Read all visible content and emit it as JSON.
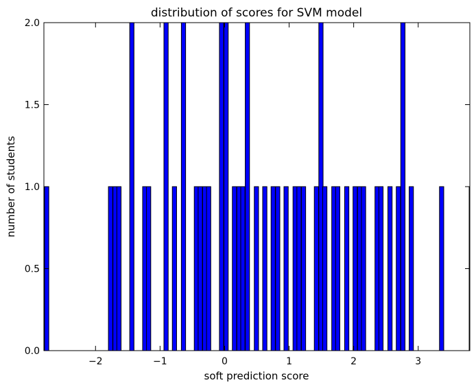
{
  "chart_data": {
    "type": "bar",
    "title": "distribution of scores for SVM model",
    "xlabel": "soft prediction score",
    "ylabel": "number of students",
    "xlim": [
      -2.8,
      3.8
    ],
    "ylim": [
      0,
      2.0
    ],
    "xticks": [
      -2,
      -1,
      0,
      1,
      2,
      3
    ],
    "xtick_labels": [
      "−2",
      "−1",
      "0",
      "1",
      "2",
      "3"
    ],
    "yticks": [
      0.0,
      0.5,
      1.0,
      1.5,
      2.0
    ],
    "ytick_labels": [
      "0.0",
      "0.5",
      "1.0",
      "1.5",
      "2.0"
    ],
    "grid": false,
    "bar_color": "#0000ff",
    "edge_color": "#000000",
    "bin_width": 0.066,
    "bins": [
      {
        "x": -2.79,
        "count": 1
      },
      {
        "x": -1.8,
        "count": 1
      },
      {
        "x": -1.73,
        "count": 1
      },
      {
        "x": -1.67,
        "count": 1
      },
      {
        "x": -1.47,
        "count": 2
      },
      {
        "x": -1.27,
        "count": 1
      },
      {
        "x": -1.21,
        "count": 1
      },
      {
        "x": -0.94,
        "count": 2
      },
      {
        "x": -0.81,
        "count": 1
      },
      {
        "x": -0.67,
        "count": 2
      },
      {
        "x": -0.47,
        "count": 1
      },
      {
        "x": -0.41,
        "count": 1
      },
      {
        "x": -0.34,
        "count": 1
      },
      {
        "x": -0.28,
        "count": 1
      },
      {
        "x": -0.08,
        "count": 2
      },
      {
        "x": -0.01,
        "count": 2
      },
      {
        "x": 0.12,
        "count": 1
      },
      {
        "x": 0.19,
        "count": 1
      },
      {
        "x": 0.25,
        "count": 1
      },
      {
        "x": 0.32,
        "count": 2
      },
      {
        "x": 0.46,
        "count": 1
      },
      {
        "x": 0.59,
        "count": 1
      },
      {
        "x": 0.72,
        "count": 1
      },
      {
        "x": 0.79,
        "count": 1
      },
      {
        "x": 0.92,
        "count": 1
      },
      {
        "x": 1.06,
        "count": 1
      },
      {
        "x": 1.12,
        "count": 1
      },
      {
        "x": 1.19,
        "count": 1
      },
      {
        "x": 1.39,
        "count": 1
      },
      {
        "x": 1.46,
        "count": 2
      },
      {
        "x": 1.52,
        "count": 1
      },
      {
        "x": 1.66,
        "count": 1
      },
      {
        "x": 1.72,
        "count": 1
      },
      {
        "x": 1.86,
        "count": 1
      },
      {
        "x": 1.99,
        "count": 1
      },
      {
        "x": 2.06,
        "count": 1
      },
      {
        "x": 2.12,
        "count": 1
      },
      {
        "x": 2.33,
        "count": 1
      },
      {
        "x": 2.39,
        "count": 1
      },
      {
        "x": 2.53,
        "count": 1
      },
      {
        "x": 2.66,
        "count": 1
      },
      {
        "x": 2.73,
        "count": 2
      },
      {
        "x": 2.86,
        "count": 1
      },
      {
        "x": 3.33,
        "count": 1
      },
      {
        "x": 3.79,
        "count": 1
      }
    ]
  }
}
